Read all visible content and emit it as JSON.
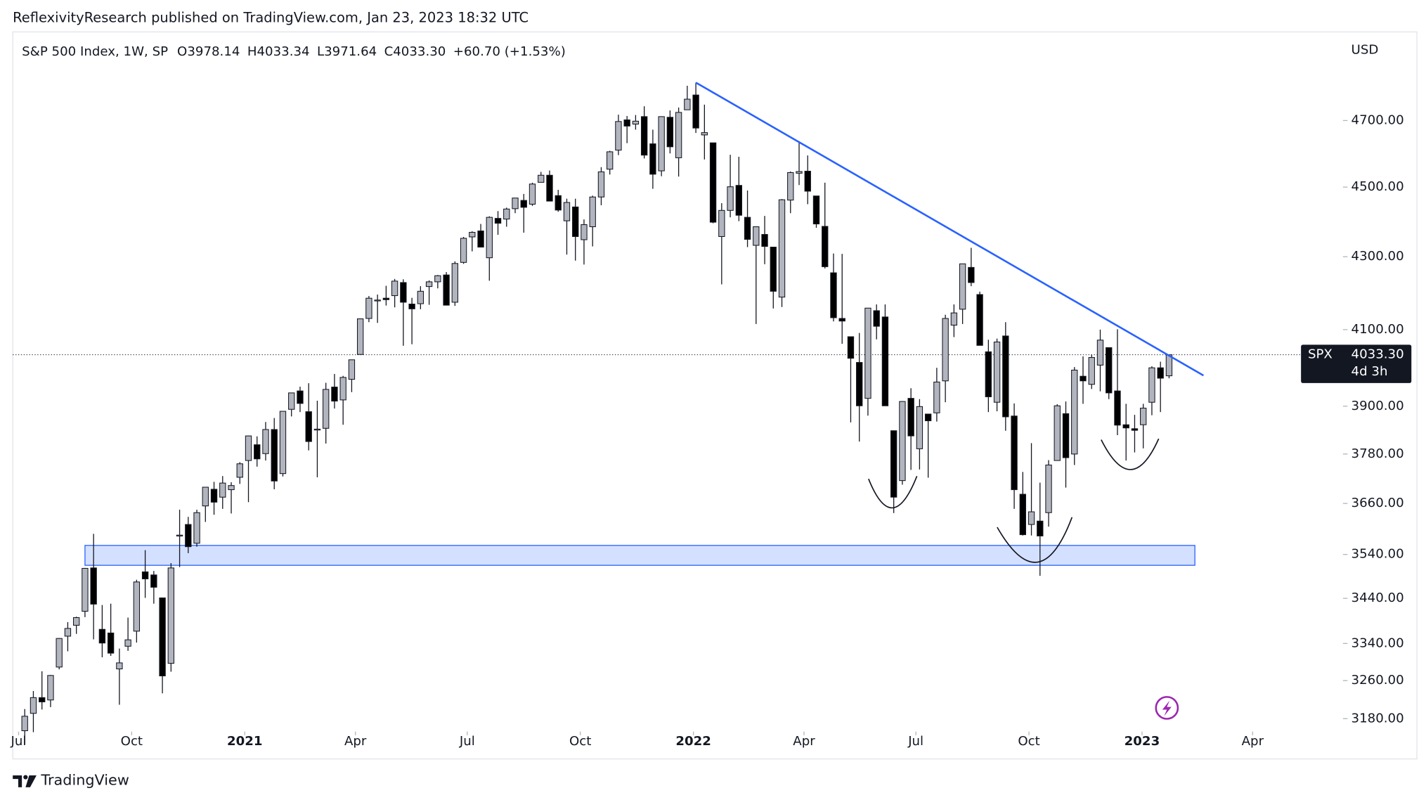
{
  "header": {
    "publisher": "ReflexivityResearch published on TradingView.com, Jan 23, 2023 18:32 UTC",
    "brand": "TradingView"
  },
  "chart_data": {
    "type": "candlestick",
    "title": "S&P 500 Index, 1W, SP",
    "legend_values": [
      "O3978.14",
      "H4033.34",
      "L3971.64",
      "C4033.30",
      "+60.70 (+1.53%)"
    ],
    "y_axis_label": "USD",
    "log_scale": true,
    "up_color": "#b2b5be",
    "down_color": "#000000",
    "x": [
      "2020-07-06",
      "2020-07-13",
      "2020-07-20",
      "2020-07-27",
      "2020-08-03",
      "2020-08-10",
      "2020-08-17",
      "2020-08-24",
      "2020-08-31",
      "2020-09-07",
      "2020-09-14",
      "2020-09-21",
      "2020-09-28",
      "2020-10-05",
      "2020-10-12",
      "2020-10-19",
      "2020-10-26",
      "2020-11-02",
      "2020-11-09",
      "2020-11-16",
      "2020-11-23",
      "2020-11-30",
      "2020-12-07",
      "2020-12-14",
      "2020-12-21",
      "2020-12-28",
      "2021-01-04",
      "2021-01-11",
      "2021-01-18",
      "2021-01-25",
      "2021-02-01",
      "2021-02-08",
      "2021-02-15",
      "2021-02-22",
      "2021-03-01",
      "2021-03-08",
      "2021-03-15",
      "2021-03-22",
      "2021-03-29",
      "2021-04-05",
      "2021-04-12",
      "2021-04-19",
      "2021-04-26",
      "2021-05-03",
      "2021-05-10",
      "2021-05-17",
      "2021-05-24",
      "2021-05-31",
      "2021-06-07",
      "2021-06-14",
      "2021-06-21",
      "2021-06-28",
      "2021-07-05",
      "2021-07-12",
      "2021-07-19",
      "2021-07-26",
      "2021-08-02",
      "2021-08-09",
      "2021-08-16",
      "2021-08-23",
      "2021-08-30",
      "2021-09-06",
      "2021-09-13",
      "2021-09-20",
      "2021-09-27",
      "2021-10-04",
      "2021-10-11",
      "2021-10-18",
      "2021-10-25",
      "2021-11-01",
      "2021-11-08",
      "2021-11-15",
      "2021-11-22",
      "2021-11-29",
      "2021-12-06",
      "2021-12-13",
      "2021-12-20",
      "2021-12-27",
      "2022-01-03",
      "2022-01-10",
      "2022-01-17",
      "2022-01-24",
      "2022-01-31",
      "2022-02-07",
      "2022-02-14",
      "2022-02-21",
      "2022-02-28",
      "2022-03-07",
      "2022-03-14",
      "2022-03-21",
      "2022-03-28",
      "2022-04-04",
      "2022-04-11",
      "2022-04-18",
      "2022-04-25",
      "2022-05-02",
      "2022-05-09",
      "2022-05-16",
      "2022-05-23",
      "2022-05-30",
      "2022-06-06",
      "2022-06-13",
      "2022-06-20",
      "2022-06-27",
      "2022-07-04",
      "2022-07-11",
      "2022-07-18",
      "2022-07-25",
      "2022-08-01",
      "2022-08-08",
      "2022-08-15",
      "2022-08-22",
      "2022-08-29",
      "2022-09-05",
      "2022-09-12",
      "2022-09-19",
      "2022-09-26",
      "2022-10-03",
      "2022-10-10",
      "2022-10-17",
      "2022-10-24",
      "2022-10-31",
      "2022-11-07",
      "2022-11-14",
      "2022-11-21",
      "2022-11-28",
      "2022-12-05",
      "2022-12-12",
      "2022-12-19",
      "2022-12-26",
      "2023-01-02",
      "2023-01-09",
      "2023-01-16",
      "2023-01-23"
    ],
    "open": [
      3155,
      3191,
      3224,
      3219,
      3289,
      3356,
      3380,
      3411,
      3509,
      3371,
      3363,
      3285,
      3334,
      3367,
      3500,
      3493,
      3441,
      3297,
      3584,
      3610,
      3566,
      3654,
      3694,
      3675,
      3693,
      3723,
      3764,
      3803,
      3781,
      3841,
      3732,
      3892,
      3939,
      3886,
      3842,
      3844,
      3949,
      3916,
      3969,
      4034,
      4130,
      4179,
      4185,
      4192,
      4228,
      4169,
      4170,
      4217,
      4230,
      4249,
      4174,
      4284,
      4356,
      4373,
      4297,
      4409,
      4407,
      4437,
      4461,
      4450,
      4514,
      4535,
      4475,
      4402,
      4442,
      4348,
      4385,
      4471,
      4553,
      4610,
      4702,
      4689,
      4712,
      4629,
      4548,
      4710,
      4587,
      4733,
      4779,
      4656,
      4632,
      4357,
      4432,
      4505,
      4412,
      4332,
      4363,
      4327,
      4188,
      4462,
      4541,
      4547,
      4474,
      4386,
      4255,
      4130,
      4081,
      4013,
      3920,
      4151,
      4134,
      3838,
      3715,
      3920,
      3793,
      3880,
      3883,
      3965,
      4112,
      4155,
      4270,
      4195,
      4041,
      3910,
      4083,
      3875,
      3682,
      3610,
      3618,
      3638,
      3764,
      3881,
      3780,
      3977,
      3956,
      4006,
      4052,
      3939,
      3853,
      3843,
      3853,
      3910,
      3999,
      3978.14
    ],
    "high": [
      3200,
      3238,
      3280,
      3272,
      3352,
      3387,
      3399,
      3509,
      3588,
      3425,
      3428,
      3329,
      3397,
      3482,
      3550,
      3502,
      3441,
      3520,
      3645,
      3628,
      3645,
      3699,
      3712,
      3726,
      3711,
      3760,
      3826,
      3824,
      3860,
      3870,
      3887,
      3934,
      3950,
      3959,
      3914,
      3960,
      3983,
      3978,
      4020,
      4130,
      4191,
      4195,
      4219,
      4238,
      4237,
      4186,
      4218,
      4234,
      4249,
      4257,
      4287,
      4356,
      4372,
      4393,
      4415,
      4430,
      4440,
      4468,
      4480,
      4513,
      4545,
      4549,
      4492,
      4466,
      4466,
      4406,
      4475,
      4559,
      4608,
      4718,
      4714,
      4717,
      4744,
      4672,
      4713,
      4731,
      4740,
      4808,
      4818,
      4749,
      4632,
      4453,
      4596,
      4590,
      4490,
      4385,
      4416,
      4327,
      4465,
      4546,
      4637,
      4594,
      4474,
      4513,
      4309,
      4308,
      4081,
      4091,
      4158,
      4168,
      4168,
      3838,
      3913,
      3946,
      3918,
      3880,
      3999,
      4140,
      4168,
      4280,
      4325,
      4203,
      4073,
      4076,
      4120,
      3907,
      3736,
      3807,
      3710,
      3765,
      3905,
      3912,
      4001,
      4029,
      4034,
      4100,
      4052,
      4101,
      3906,
      3878,
      3906,
      4003,
      4015,
      4033.34
    ],
    "low": [
      3127,
      3152,
      3199,
      3204,
      3284,
      3323,
      3361,
      3398,
      3349,
      3310,
      3313,
      3209,
      3324,
      3342,
      3441,
      3428,
      3233,
      3279,
      3511,
      3543,
      3558,
      3616,
      3633,
      3647,
      3636,
      3707,
      3663,
      3749,
      3764,
      3694,
      3725,
      3874,
      3885,
      3789,
      3723,
      3806,
      3894,
      3853,
      3936,
      4034,
      4120,
      4118,
      4165,
      4160,
      4057,
      4061,
      4155,
      4167,
      4212,
      4165,
      4164,
      4280,
      4315,
      4327,
      4233,
      4362,
      4385,
      4424,
      4368,
      4445,
      4514,
      4459,
      4428,
      4306,
      4289,
      4278,
      4329,
      4447,
      4537,
      4595,
      4631,
      4672,
      4585,
      4495,
      4532,
      4600,
      4531,
      4733,
      4662,
      4582,
      4395,
      4223,
      4412,
      4401,
      4327,
      4115,
      4279,
      4157,
      4161,
      4424,
      4506,
      4450,
      4382,
      4267,
      4122,
      4062,
      3859,
      3811,
      3876,
      4074,
      3901,
      3637,
      3705,
      3741,
      3742,
      3722,
      3861,
      3910,
      4080,
      4115,
      4218,
      4058,
      3885,
      3887,
      3838,
      3647,
      3584,
      3584,
      3491,
      3605,
      3764,
      3698,
      3753,
      3906,
      3944,
      3938,
      3918,
      3827,
      3764,
      3784,
      3794,
      3877,
      3885,
      3971.64
    ],
    "close": [
      3185,
      3224,
      3215,
      3271,
      3351,
      3373,
      3397,
      3508,
      3427,
      3341,
      3319,
      3298,
      3348,
      3477,
      3484,
      3465,
      3270,
      3509,
      3585,
      3558,
      3638,
      3699,
      3663,
      3709,
      3703,
      3756,
      3825,
      3768,
      3841,
      3714,
      3887,
      3934,
      3907,
      3811,
      3842,
      3943,
      3913,
      3974,
      4020,
      4129,
      4185,
      4180,
      4181,
      4232,
      4174,
      4156,
      4204,
      4230,
      4247,
      4166,
      4281,
      4352,
      4369,
      4327,
      4412,
      4395,
      4436,
      4468,
      4441,
      4509,
      4535,
      4459,
      4433,
      4455,
      4357,
      4391,
      4471,
      4545,
      4605,
      4697,
      4683,
      4698,
      4595,
      4538,
      4712,
      4620,
      4725,
      4766,
      4677,
      4663,
      4398,
      4432,
      4501,
      4418,
      4349,
      4385,
      4329,
      4204,
      4463,
      4543,
      4546,
      4488,
      4393,
      4272,
      4132,
      4123,
      4024,
      3901,
      4158,
      4109,
      3901,
      3675,
      3912,
      3825,
      3899,
      3863,
      3962,
      4130,
      4145,
      4280,
      4228,
      4058,
      3924,
      4067,
      3873,
      3693,
      3586,
      3640,
      3583,
      3753,
      3901,
      3771,
      3993,
      3965,
      4026,
      4072,
      3934,
      3852,
      3845,
      3839,
      3895,
      3999,
      3972,
      4033.3
    ],
    "xlim": [
      "2020-06-27",
      "2023-06-12"
    ],
    "ylim": [
      3157,
      4980
    ],
    "yticks": [
      {
        "value": 3180,
        "label": "3180.00"
      },
      {
        "value": 3260,
        "label": "3260.00"
      },
      {
        "value": 3340,
        "label": "3340.00"
      },
      {
        "value": 3440,
        "label": "3440.00"
      },
      {
        "value": 3540,
        "label": "3540.00"
      },
      {
        "value": 3660,
        "label": "3660.00"
      },
      {
        "value": 3780,
        "label": "3780.00"
      },
      {
        "value": 3900,
        "label": "3900.00"
      },
      {
        "value": 4100,
        "label": "4100.00"
      },
      {
        "value": 4300,
        "label": "4300.00"
      },
      {
        "value": 4500,
        "label": "4500.00"
      },
      {
        "value": 4700,
        "label": "4700.00"
      }
    ],
    "xticks": [
      {
        "value": "2020-07-01",
        "label": "Jul"
      },
      {
        "value": "2020-10-01",
        "label": "Oct"
      },
      {
        "value": "2021-01-01",
        "label": "2021"
      },
      {
        "value": "2021-04-01",
        "label": "Apr"
      },
      {
        "value": "2021-07-01",
        "label": "Jul"
      },
      {
        "value": "2021-10-01",
        "label": "Oct"
      },
      {
        "value": "2022-01-01",
        "label": "2022"
      },
      {
        "value": "2022-04-01",
        "label": "Apr"
      },
      {
        "value": "2022-07-01",
        "label": "Jul"
      },
      {
        "value": "2022-10-01",
        "label": "Oct"
      },
      {
        "value": "2023-01-01",
        "label": "2023"
      },
      {
        "value": "2023-04-01",
        "label": "Apr"
      }
    ],
    "price_label": {
      "symbol": "SPX",
      "value_label": "4033.30",
      "countdown": "4d 3h"
    },
    "annotations": {
      "trendline": {
        "x": [
          "2022-01-03",
          "2023-02-20"
        ],
        "y": [
          4818,
          3979
        ],
        "color": "#2962ff"
      },
      "zone": {
        "x": [
          "2020-08-24",
          "2023-02-13"
        ],
        "y": [
          3515,
          3561
        ],
        "color": "#2962ff"
      }
    }
  }
}
